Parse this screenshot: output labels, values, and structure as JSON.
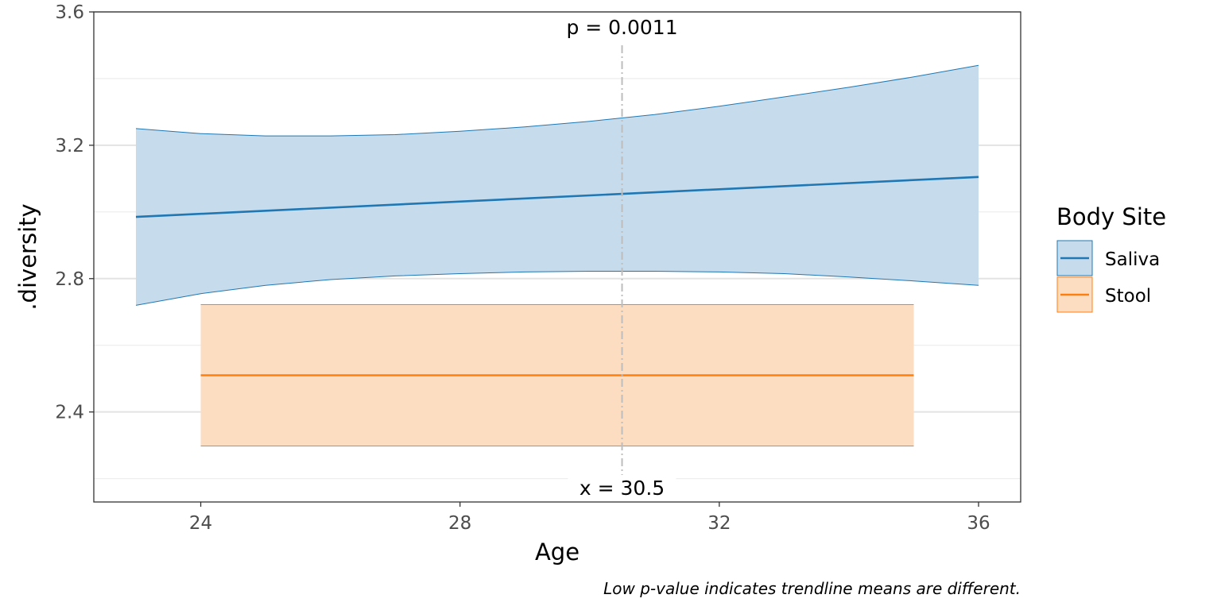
{
  "chart_data": {
    "type": "line",
    "xlabel": "Age",
    "ylabel": ".diversity",
    "caption": "Low p-value indicates trendline means are different.",
    "xlim": [
      22.35,
      36.65
    ],
    "ylim": [
      2.13,
      3.6
    ],
    "x_ticks": [
      24,
      28,
      32,
      36
    ],
    "x_tick_labels": [
      "24",
      "28",
      "32",
      "36"
    ],
    "y_ticks": [
      2.4,
      2.8,
      3.2,
      3.6
    ],
    "y_tick_labels": [
      "2.4",
      "2.8",
      "3.2",
      "3.6"
    ],
    "y_minor_gridlines": [
      2.2,
      2.6,
      3.0,
      3.4
    ],
    "grid": "horizontal",
    "legend": {
      "title": "Body Site",
      "position": "right",
      "entries": [
        "Saliva",
        "Stool"
      ]
    },
    "series": [
      {
        "name": "Saliva",
        "color": "#1f77b4",
        "fill": "#c6dcec",
        "x": [
          23,
          36
        ],
        "y": [
          2.985,
          3.105
        ],
        "ribbon_x": [
          23,
          24,
          25,
          26,
          27,
          28,
          29,
          30,
          31,
          32,
          33,
          34,
          35,
          36
        ],
        "ribbon_upper": [
          3.25,
          3.235,
          3.228,
          3.228,
          3.232,
          3.242,
          3.255,
          3.272,
          3.292,
          3.317,
          3.345,
          3.374,
          3.405,
          3.44
        ],
        "ribbon_lower": [
          2.72,
          2.755,
          2.78,
          2.797,
          2.808,
          2.815,
          2.82,
          2.822,
          2.822,
          2.82,
          2.815,
          2.805,
          2.793,
          2.78
        ]
      },
      {
        "name": "Stool",
        "color": "#ff7f0e",
        "fill": "#fdddc2",
        "x": [
          24,
          35
        ],
        "y": [
          2.51,
          2.51
        ],
        "ribbon_x": [
          24,
          35
        ],
        "ribbon_upper": [
          2.722,
          2.722
        ],
        "ribbon_lower": [
          2.298,
          2.298
        ]
      }
    ],
    "annotations": {
      "vline_x": 30.5,
      "p_label": "p = 0.0011",
      "x_label": "x = 30.5",
      "p_label_y": 3.555,
      "vline_top_y": 3.5
    }
  }
}
